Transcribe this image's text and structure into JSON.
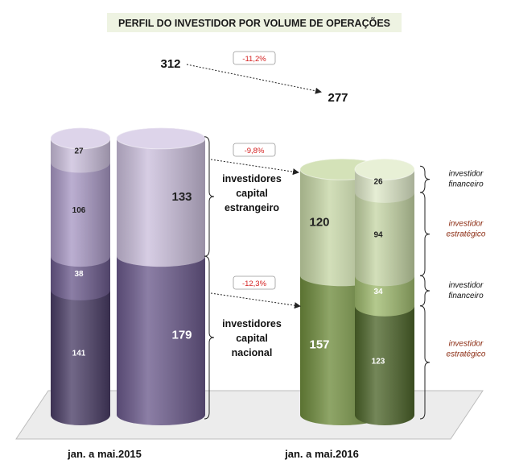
{
  "chart_data": {
    "type": "bar",
    "title": "PERFIL DO INVESTIDOR POR VOLUME DE OPERAÇÕES",
    "categories": [
      "jan. a mai.2015",
      "jan. a mai.2016"
    ],
    "totals": [
      312,
      277
    ],
    "groups": [
      {
        "name": "investidores capital estrangeiro",
        "values": [
          133,
          120
        ],
        "change": "-9,8%"
      },
      {
        "name": "investidores capital nacional",
        "values": [
          179,
          157
        ],
        "change": "-12,3%"
      }
    ],
    "total_change": "-11,2%",
    "breakdown": {
      "estrangeiro": [
        {
          "name": "investidor financeiro",
          "values": [
            27,
            26
          ]
        },
        {
          "name": "investidor estratégico",
          "values": [
            106,
            94
          ]
        }
      ],
      "nacional": [
        {
          "name": "investidor financeiro",
          "values": [
            38,
            34
          ]
        },
        {
          "name": "investidor estratégico",
          "values": [
            141,
            123
          ]
        }
      ]
    },
    "colors": {
      "2015_light": "#cbbfdc",
      "2015_mid": "#a898c4",
      "2015_dark": "#6b5a8c",
      "2015_darkest": "#4a3d66",
      "2016_light": "#c6d6a6",
      "2016_mid": "#9fba6e",
      "2016_dark": "#6f8c3d",
      "2016_darkest": "#4d652a",
      "change_red": "#d42020",
      "legend_red": "#8b2a10"
    }
  }
}
